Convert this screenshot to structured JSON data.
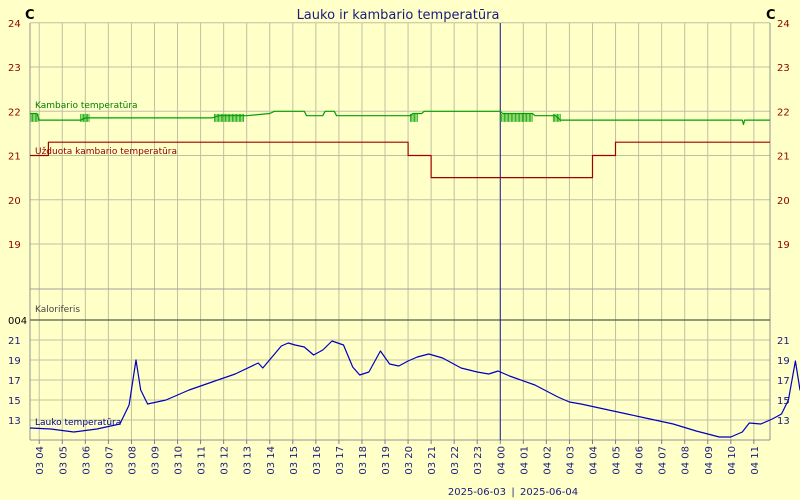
{
  "chart_data": {
    "type": "line",
    "title": "Lauko ir  kambario temperatūra",
    "unit_left": "C",
    "unit_right": "C",
    "date_left": "2025-06-03",
    "date_separator": "|",
    "date_right": "2025-06-04",
    "grid": true,
    "x_ticks": [
      "03 04",
      "03 05",
      "03 06",
      "03 07",
      "03 08",
      "03 09",
      "03 10",
      "03 11",
      "03 12",
      "03 13",
      "03 14",
      "03 15",
      "03 16",
      "03 17",
      "03 18",
      "03 19",
      "03 20",
      "03 21",
      "03 22",
      "03 23",
      "04 00",
      "04 01",
      "04 02",
      "04 03",
      "04 04",
      "04 05",
      "04 06",
      "04 07",
      "04 08",
      "04 09",
      "04 10",
      "04 11"
    ],
    "upper_panel": {
      "ylim": [
        18,
        24
      ],
      "y_ticks": [
        "24",
        "23",
        "22",
        "21",
        "20",
        "19"
      ],
      "series": [
        {
          "name": "Kambario temperatūra",
          "color": "#00a000",
          "points": [
            [
              3.6,
              21.95
            ],
            [
              3.9,
              21.95
            ],
            [
              4.0,
              21.8
            ],
            [
              5.8,
              21.8
            ],
            [
              6.0,
              21.85
            ],
            [
              11.5,
              21.85
            ],
            [
              11.8,
              21.9
            ],
            [
              13.0,
              21.9
            ],
            [
              14.0,
              21.95
            ],
            [
              14.2,
              22.0
            ],
            [
              15.5,
              22.0
            ],
            [
              15.6,
              21.9
            ],
            [
              16.3,
              21.9
            ],
            [
              16.4,
              22.0
            ],
            [
              16.8,
              22.0
            ],
            [
              16.9,
              21.9
            ],
            [
              20.1,
              21.9
            ],
            [
              20.2,
              21.95
            ],
            [
              20.6,
              21.95
            ],
            [
              20.7,
              22.0
            ],
            [
              24.0,
              22.0
            ],
            [
              24.1,
              21.95
            ],
            [
              25.4,
              21.95
            ],
            [
              25.5,
              21.9
            ],
            [
              26.4,
              21.9
            ],
            [
              26.6,
              21.8
            ],
            [
              34.5,
              21.8
            ],
            [
              34.55,
              21.7
            ],
            [
              34.6,
              21.8
            ],
            [
              35.7,
              21.8
            ]
          ]
        },
        {
          "name": "Užduota kambario temperatūra",
          "color": "#a00000",
          "points": [
            [
              3.6,
              21.0
            ],
            [
              4.4,
              21.0
            ],
            [
              4.4,
              21.3
            ],
            [
              20.0,
              21.3
            ],
            [
              20.0,
              21.0
            ],
            [
              21.0,
              21.0
            ],
            [
              21.0,
              20.5
            ],
            [
              28.0,
              20.5
            ],
            [
              28.0,
              21.0
            ],
            [
              29.0,
              21.0
            ],
            [
              29.0,
              21.3
            ],
            [
              35.7,
              21.3
            ]
          ]
        }
      ]
    },
    "middle_panel": {
      "label": "Kaloriferis",
      "tick": "004",
      "value": 4
    },
    "lower_panel": {
      "ylim": [
        11,
        22
      ],
      "y_ticks": [
        "21",
        "19",
        "17",
        "15",
        "13"
      ],
      "series": [
        {
          "name": "Lauko temperatūra",
          "color": "#0000c0",
          "points": [
            [
              3.6,
              12.2
            ],
            [
              4.5,
              12.1
            ],
            [
              5.5,
              11.8
            ],
            [
              6.5,
              12.1
            ],
            [
              7.5,
              12.6
            ],
            [
              7.9,
              14.5
            ],
            [
              8.2,
              19.0
            ],
            [
              8.4,
              16.0
            ],
            [
              8.7,
              14.6
            ],
            [
              9.5,
              15.0
            ],
            [
              10.5,
              16.0
            ],
            [
              11.5,
              16.8
            ],
            [
              12.5,
              17.6
            ],
            [
              13.5,
              18.7
            ],
            [
              13.7,
              18.2
            ],
            [
              14.5,
              20.4
            ],
            [
              14.8,
              20.7
            ],
            [
              15.1,
              20.5
            ],
            [
              15.5,
              20.3
            ],
            [
              15.9,
              19.5
            ],
            [
              16.3,
              20.0
            ],
            [
              16.7,
              20.9
            ],
            [
              17.2,
              20.5
            ],
            [
              17.6,
              18.3
            ],
            [
              17.9,
              17.5
            ],
            [
              18.3,
              17.8
            ],
            [
              18.8,
              19.9
            ],
            [
              19.2,
              18.6
            ],
            [
              19.6,
              18.4
            ],
            [
              20.0,
              18.9
            ],
            [
              20.4,
              19.3
            ],
            [
              20.9,
              19.6
            ],
            [
              21.5,
              19.2
            ],
            [
              22.3,
              18.2
            ],
            [
              23.0,
              17.8
            ],
            [
              23.5,
              17.6
            ],
            [
              23.9,
              17.9
            ],
            [
              24.4,
              17.4
            ],
            [
              25.5,
              16.5
            ],
            [
              26.5,
              15.3
            ],
            [
              27.0,
              14.8
            ],
            [
              27.5,
              14.6
            ],
            [
              28.5,
              14.1
            ],
            [
              29.5,
              13.6
            ],
            [
              30.5,
              13.1
            ],
            [
              31.5,
              12.6
            ],
            [
              32.5,
              11.9
            ],
            [
              33.0,
              11.6
            ],
            [
              33.5,
              11.3
            ],
            [
              34.0,
              11.3
            ],
            [
              34.5,
              11.8
            ],
            [
              34.8,
              12.7
            ],
            [
              35.3,
              12.6
            ],
            [
              35.8,
              13.1
            ],
            [
              36.2,
              13.6
            ],
            [
              36.5,
              15.0
            ],
            [
              36.8,
              18.9
            ],
            [
              37.0,
              16.0
            ],
            [
              37.3,
              15.3
            ],
            [
              38.0,
              15.4
            ],
            [
              39.0,
              15.8
            ],
            [
              40.0,
              16.5
            ],
            [
              40.8,
              17.0
            ],
            [
              41.1,
              17.3
            ]
          ]
        }
      ]
    }
  }
}
